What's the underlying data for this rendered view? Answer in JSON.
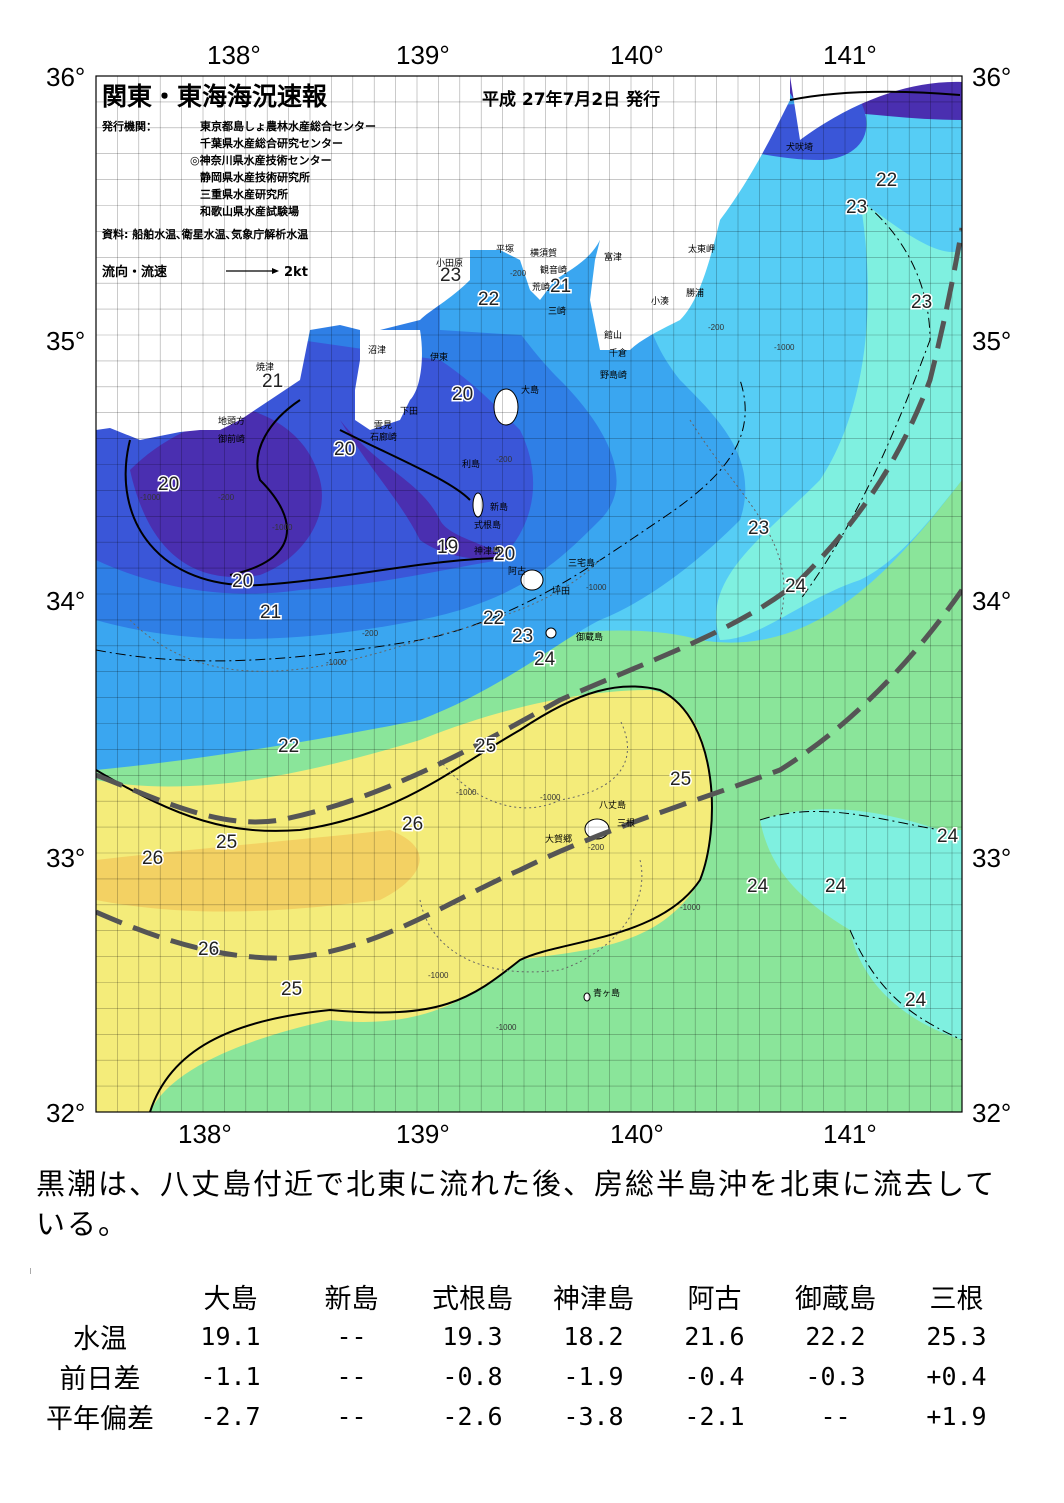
{
  "header": {
    "title": "関東・東海海況速報",
    "date": "平成 27年7月2日 発行",
    "publisher_label": "発行機関：",
    "publishers": [
      "東京都島しょ農林水産総合センター",
      "千葉県水産総合研究センター",
      "◎神奈川県水産技術センター",
      "静岡県水産技術研究所",
      "三重県水産研究所",
      "和歌山県水産試験場"
    ],
    "source": "資料: 船舶水温､衛星水温､気象庁解析水温",
    "current_legend": "流向・流速",
    "current_legend_scale": "2kt"
  },
  "axes": {
    "lon_labels": [
      "138°",
      "139°",
      "140°",
      "141°"
    ],
    "lat_labels": [
      "36°",
      "35°",
      "34°",
      "33°",
      "32°"
    ]
  },
  "places": [
    {
      "name": "犬吠埼"
    },
    {
      "name": "太東岬"
    },
    {
      "name": "勝浦"
    },
    {
      "name": "小湊"
    },
    {
      "name": "館山"
    },
    {
      "name": "千倉"
    },
    {
      "name": "野島崎"
    },
    {
      "name": "富津"
    },
    {
      "name": "横須賀"
    },
    {
      "name": "観音崎"
    },
    {
      "name": "荒崎"
    },
    {
      "name": "三崎"
    },
    {
      "name": "平塚"
    },
    {
      "name": "小田原"
    },
    {
      "name": "沼津"
    },
    {
      "name": "伊東"
    },
    {
      "name": "焼津"
    },
    {
      "name": "地頭方"
    },
    {
      "name": "御前崎"
    },
    {
      "name": "下田"
    },
    {
      "name": "雲見"
    },
    {
      "name": "石廊崎"
    },
    {
      "name": "大島"
    },
    {
      "name": "利島"
    },
    {
      "name": "新島"
    },
    {
      "name": "式根島"
    },
    {
      "name": "神津島"
    },
    {
      "name": "阿古"
    },
    {
      "name": "三宅島"
    },
    {
      "name": "坪田"
    },
    {
      "name": "御蔵島"
    },
    {
      "name": "八丈島"
    },
    {
      "name": "三根"
    },
    {
      "name": "大賀郷"
    },
    {
      "name": "青ヶ島"
    }
  ],
  "isotherm_labels": [
    "19",
    "20",
    "21",
    "22",
    "23",
    "24",
    "25",
    "26"
  ],
  "depth_labels": [
    "-200",
    "-1000"
  ],
  "summary": "黒潮は、八丈島付近で北東に流れた後、房総半島沖を北東に流去している。",
  "stats": {
    "columns": [
      "大島",
      "新島",
      "式根島",
      "神津島",
      "阿古",
      "御蔵島",
      "三根"
    ],
    "rows": [
      {
        "label": "水温",
        "values": [
          "19.1",
          "--",
          "19.3",
          "18.2",
          "21.6",
          "22.2",
          "25.3"
        ]
      },
      {
        "label": "前日差",
        "values": [
          "-1.1",
          "--",
          "-0.8",
          "-1.9",
          "-0.4",
          "-0.3",
          "+0.4"
        ]
      },
      {
        "label": "平年偏差",
        "values": [
          "-2.7",
          "--",
          "-2.6",
          "-3.8",
          "-2.1",
          "--",
          "+1.9"
        ]
      }
    ]
  },
  "colors": {
    "t19": "#4a2fb0",
    "t20": "#3a56d8",
    "t21": "#2f7fe6",
    "t22": "#3aa6f0",
    "t23": "#56cdf5",
    "t24": "#7ff0e0",
    "t25": "#8ae59a",
    "t26": "#f4ec7a",
    "t27": "#f2c65a",
    "land": "#ffffff",
    "kuroshio": "#555555"
  }
}
